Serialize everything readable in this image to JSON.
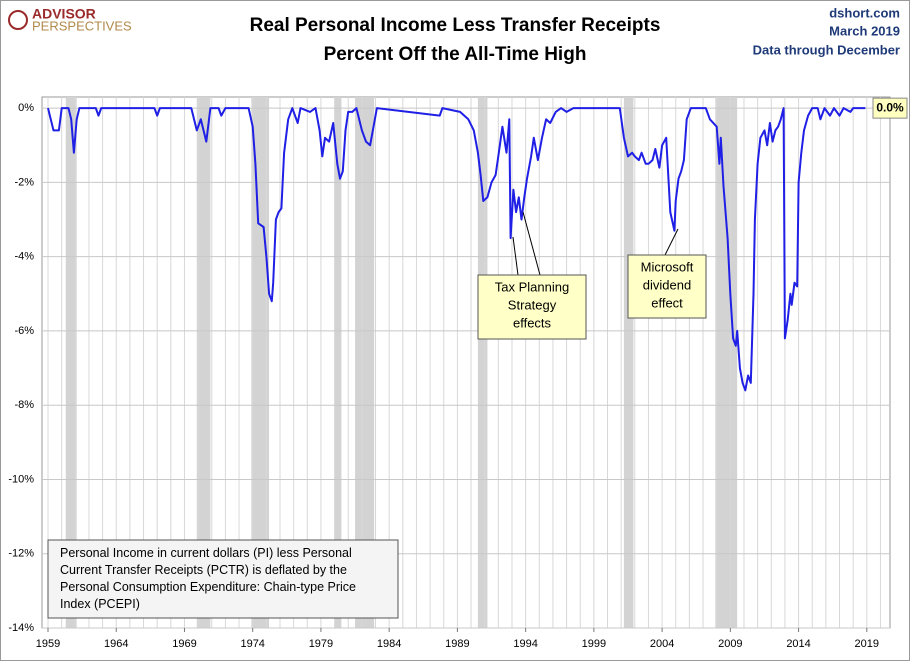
{
  "logo": [
    "ADVISOR",
    "PERSPECTIVES"
  ],
  "source": [
    "dshort.com",
    "March 2019",
    "Data through December"
  ],
  "chart_data": {
    "type": "line",
    "title": [
      "Real Personal Income Less Transfer Receipts",
      "Percent Off the All-Time High"
    ],
    "xlim": [
      1958.56,
      2020.7
    ],
    "xticks": [
      1959,
      1964,
      1969,
      1974,
      1979,
      1984,
      1989,
      1994,
      1999,
      2004,
      2009,
      2014,
      2019
    ],
    "xminorticks": [
      1959,
      1960,
      1961,
      1962,
      1963,
      1964,
      1965,
      1966,
      1967,
      1968,
      1969,
      1970,
      1971,
      1972,
      1973,
      1974,
      1975,
      1976,
      1977,
      1978,
      1979,
      1980,
      1981,
      1982,
      1983,
      1984,
      1985,
      1986,
      1987,
      1988,
      1989,
      1990,
      1991,
      1992,
      1993,
      1994,
      1995,
      1996,
      1997,
      1998,
      1999,
      2000,
      2001,
      2002,
      2003,
      2004,
      2005,
      2006,
      2007,
      2008,
      2009,
      2010,
      2011,
      2012,
      2013,
      2014,
      2015,
      2016,
      2017,
      2018,
      2019,
      2020
    ],
    "ylim": [
      -14,
      0.3
    ],
    "yticks": [
      {
        "value": 0,
        "label": "0%"
      },
      {
        "value": -2,
        "label": "-2%"
      },
      {
        "value": -4,
        "label": "-4%"
      },
      {
        "value": -6,
        "label": "-6%"
      },
      {
        "value": -8,
        "label": "-8%"
      },
      {
        "value": -10,
        "label": "-10%"
      },
      {
        "value": -12,
        "label": "-12%"
      },
      {
        "value": -14,
        "label": "-14%"
      }
    ],
    "grid": true,
    "recessions": [
      [
        1960.3,
        1961.1
      ],
      [
        1969.9,
        1970.9
      ],
      [
        1973.9,
        1975.2
      ],
      [
        1980.0,
        1980.5
      ],
      [
        1981.5,
        1982.9
      ],
      [
        1990.5,
        1991.2
      ],
      [
        2001.2,
        2001.9
      ],
      [
        2007.9,
        2009.5
      ]
    ],
    "recession_color": "#d3d3d3",
    "series": [
      {
        "color": "#1f1fe6",
        "x": [
          1959.0,
          1959.4,
          1959.8,
          1960.0,
          1960.5,
          1960.7,
          1960.9,
          1961.1,
          1961.3,
          1962.5,
          1962.7,
          1962.9,
          1966.8,
          1967.0,
          1967.2,
          1969.5,
          1969.9,
          1970.2,
          1970.6,
          1970.9,
          1971.5,
          1971.7,
          1972.0,
          1973.7,
          1974.0,
          1974.2,
          1974.4,
          1974.8,
          1975.0,
          1975.2,
          1975.4,
          1975.5,
          1975.7,
          1975.9,
          1976.1,
          1976.3,
          1976.6,
          1976.9,
          1977.3,
          1977.5,
          1978.2,
          1978.6,
          1978.9,
          1979.1,
          1979.3,
          1979.6,
          1979.9,
          1980.2,
          1980.4,
          1980.6,
          1980.8,
          1981.0,
          1981.3,
          1981.6,
          1982.0,
          1982.3,
          1982.6,
          1982.9,
          1983.1,
          1987.7,
          1987.9,
          1989.2,
          1989.8,
          1990.2,
          1990.5,
          1990.7,
          1990.9,
          1991.2,
          1991.5,
          1991.8,
          1992.0,
          1992.3,
          1992.6,
          1992.8,
          1992.9,
          1993.1,
          1993.3,
          1993.5,
          1993.7,
          1993.9,
          1994.1,
          1994.4,
          1994.6,
          1994.9,
          1995.2,
          1995.5,
          1995.8,
          1996.2,
          1996.6,
          1997.0,
          1997.5,
          2000.9,
          2001.2,
          2001.5,
          2001.8,
          2002.0,
          2002.3,
          2002.5,
          2002.8,
          2003.0,
          2003.3,
          2003.5,
          2003.8,
          2004.0,
          2004.3,
          2004.6,
          2004.9,
          2005.0,
          2005.2,
          2005.4,
          2005.6,
          2005.8,
          2006.1,
          2007.2,
          2007.5,
          2008.0,
          2008.2,
          2008.3,
          2008.5,
          2008.8,
          2009.0,
          2009.2,
          2009.4,
          2009.5,
          2009.7,
          2009.9,
          2010.1,
          2010.3,
          2010.5,
          2010.7,
          2010.8,
          2011.0,
          2011.2,
          2011.5,
          2011.7,
          2011.9,
          2012.1,
          2012.3,
          2012.5,
          2012.7,
          2012.9,
          2013.0,
          2013.2,
          2013.4,
          2013.5,
          2013.7,
          2013.9,
          2014.0,
          2014.2,
          2014.4,
          2014.7,
          2015.0,
          2015.4,
          2015.6,
          2015.9,
          2016.3,
          2016.6,
          2017.0,
          2017.3,
          2017.8,
          2018.0,
          2018.9
        ],
        "values": [
          0,
          -0.6,
          -0.6,
          0,
          0,
          -0.3,
          -1.2,
          -0.3,
          0,
          0,
          -0.2,
          0,
          0,
          -0.2,
          0,
          0,
          -0.6,
          -0.3,
          -0.9,
          0,
          0,
          -0.2,
          0,
          0,
          -0.5,
          -1.5,
          -3.1,
          -3.2,
          -4.0,
          -5.0,
          -5.2,
          -4.7,
          -3.0,
          -2.8,
          -2.7,
          -1.2,
          -0.3,
          0,
          -0.4,
          0,
          -0.1,
          0,
          -0.6,
          -1.3,
          -0.8,
          -0.9,
          -0.4,
          -1.5,
          -1.9,
          -1.7,
          -0.6,
          -0.1,
          -0.1,
          0,
          -0.6,
          -0.9,
          -1.0,
          -0.4,
          0,
          -0.2,
          0,
          -0.1,
          -0.3,
          -0.6,
          -1.2,
          -1.8,
          -2.5,
          -2.4,
          -2.0,
          -1.8,
          -1.3,
          -0.5,
          -1.2,
          -0.3,
          -3.5,
          -2.2,
          -2.8,
          -2.4,
          -3.0,
          -2.4,
          -1.9,
          -1.3,
          -0.8,
          -1.4,
          -0.8,
          -0.3,
          -0.4,
          -0.1,
          0,
          -0.1,
          0,
          0,
          -0.8,
          -1.3,
          -1.2,
          -1.3,
          -1.4,
          -1.2,
          -1.5,
          -1.5,
          -1.4,
          -1.1,
          -1.6,
          -1.0,
          -0.8,
          -2.8,
          -3.3,
          -2.5,
          -1.9,
          -1.7,
          -1.4,
          -0.3,
          0,
          0,
          -0.3,
          -0.5,
          -1.5,
          -0.8,
          -2.1,
          -3.5,
          -5.0,
          -6.2,
          -6.4,
          -6.0,
          -7.0,
          -7.4,
          -7.6,
          -7.2,
          -7.4,
          -5.0,
          -3.0,
          -1.5,
          -0.8,
          -0.6,
          -1.0,
          -0.4,
          -0.9,
          -0.6,
          -0.5,
          -0.3,
          0,
          -6.2,
          -5.7,
          -5.0,
          -5.3,
          -4.7,
          -4.8,
          -2.0,
          -1.2,
          -0.6,
          -0.2,
          0,
          0,
          -0.3,
          0,
          -0.2,
          0,
          -0.2,
          0,
          -0.1,
          0,
          0
        ]
      }
    ],
    "end_label": {
      "value": 0.0,
      "label": "0.0%"
    },
    "annotations": [
      {
        "text": [
          "Tax Planning",
          "Strategy",
          "effects"
        ]
      },
      {
        "text": [
          "Microsoft",
          "dividend",
          "effect"
        ]
      }
    ],
    "note": [
      "Personal Income in current dollars  (PI) less Personal",
      "Current Transfer Receipts (PCTR) is deflated by the",
      "Personal Consumption Expenditure: Chain-type Price",
      "Index (PCEPI)"
    ]
  }
}
